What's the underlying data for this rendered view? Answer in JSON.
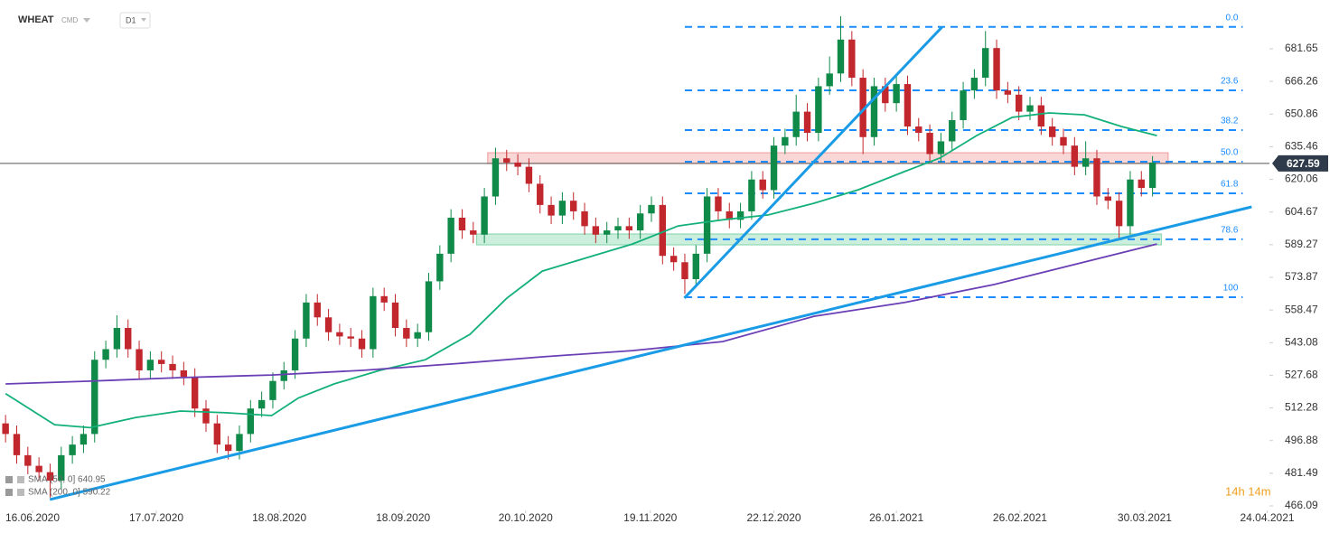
{
  "header": {
    "symbol": "WHEAT",
    "market": "CMD",
    "timeframe": "D1"
  },
  "chart_data": {
    "type": "candlestick",
    "xlim": [
      -0.5,
      113.5
    ],
    "xticks": [
      {
        "value": 2.42,
        "label": "16.06.2020"
      },
      {
        "value": 13.54,
        "label": "17.07.2020"
      },
      {
        "value": 24.58,
        "label": "18.08.2020"
      },
      {
        "value": 35.7,
        "label": "18.09.2020"
      },
      {
        "value": 46.7,
        "label": "20.10.2020"
      },
      {
        "value": 57.9,
        "label": "19.11.2020"
      },
      {
        "value": 69.0,
        "label": "22.12.2020"
      },
      {
        "value": 80.0,
        "label": "26.01.2021"
      },
      {
        "value": 91.1,
        "label": "26.02.2021"
      },
      {
        "value": 102.3,
        "label": "30.03.2021"
      },
      {
        "value": 113.3,
        "label": "24.04.2021"
      }
    ],
    "ylim": [
      463.96,
      704.65
    ],
    "yticks": [
      681.65,
      666.26,
      650.86,
      635.46,
      620.06,
      604.67,
      589.27,
      573.87,
      558.47,
      543.08,
      527.68,
      512.28,
      496.88,
      481.49,
      466.09
    ],
    "grid": false,
    "up_color": "#0f8a48",
    "down_color": "#c1272d",
    "open": [
      505,
      500,
      490,
      485,
      482,
      478,
      490,
      495,
      500,
      535,
      540,
      550,
      540,
      530,
      535,
      533,
      530,
      527,
      512,
      505,
      495,
      492,
      500,
      512,
      516,
      525,
      530,
      545,
      562,
      555,
      548,
      546,
      545,
      540,
      565,
      562,
      550,
      545,
      548,
      572,
      585,
      602,
      596,
      594,
      612,
      630,
      628,
      626,
      618,
      608,
      603,
      610,
      605,
      598,
      594,
      596,
      598,
      596,
      604,
      608,
      584,
      581,
      573,
      585,
      612,
      605,
      601,
      605,
      620,
      615,
      636,
      640,
      652,
      642,
      664,
      670,
      686,
      668,
      640,
      664,
      656,
      665,
      645,
      642,
      632,
      638,
      648,
      662,
      668,
      682,
      662,
      660,
      652,
      655,
      645,
      640,
      636,
      626,
      630,
      612,
      610,
      598,
      620,
      616
    ],
    "high": [
      509,
      504,
      494,
      489,
      486,
      494,
      499,
      504,
      539,
      544,
      556,
      554,
      544,
      539,
      539,
      537,
      534,
      531,
      516,
      509,
      499,
      504,
      516,
      520,
      529,
      534,
      549,
      566,
      566,
      559,
      552,
      550,
      549,
      569,
      569,
      566,
      554,
      552,
      576,
      589,
      606,
      606,
      600,
      616,
      635,
      634,
      632,
      630,
      622,
      612,
      614,
      614,
      609,
      602,
      600,
      602,
      602,
      608,
      612,
      612,
      588,
      585,
      589,
      616,
      616,
      609,
      609,
      624,
      624,
      640,
      644,
      660,
      656,
      668,
      678,
      697,
      690,
      672,
      668,
      668,
      669,
      669,
      649,
      646,
      642,
      652,
      666,
      672,
      690,
      686,
      666,
      664,
      659,
      659,
      649,
      644,
      640,
      638,
      634,
      616,
      614,
      624,
      624,
      631
    ],
    "low": [
      496,
      486,
      481,
      478,
      470,
      474,
      486,
      491,
      496,
      531,
      536,
      536,
      526,
      526,
      529,
      526,
      523,
      508,
      501,
      491,
      488,
      488,
      496,
      508,
      512,
      521,
      526,
      541,
      551,
      544,
      542,
      541,
      536,
      536,
      558,
      546,
      541,
      541,
      544,
      568,
      581,
      592,
      590,
      590,
      608,
      624,
      622,
      614,
      604,
      599,
      599,
      601,
      594,
      590,
      590,
      592,
      592,
      592,
      600,
      580,
      577,
      566,
      569,
      581,
      601,
      597,
      597,
      601,
      611,
      611,
      632,
      636,
      638,
      638,
      660,
      666,
      664,
      632,
      636,
      652,
      652,
      641,
      638,
      628,
      628,
      634,
      644,
      658,
      664,
      658,
      656,
      648,
      648,
      641,
      636,
      632,
      622,
      622,
      608,
      606,
      592,
      594,
      612,
      612
    ],
    "close": [
      500,
      490,
      485,
      482,
      478,
      490,
      495,
      500,
      535,
      540,
      550,
      540,
      530,
      535,
      533,
      530,
      527,
      512,
      505,
      495,
      492,
      500,
      512,
      516,
      525,
      530,
      545,
      562,
      555,
      548,
      546,
      545,
      540,
      565,
      562,
      550,
      545,
      548,
      572,
      585,
      602,
      596,
      594,
      612,
      630,
      628,
      626,
      618,
      608,
      603,
      610,
      605,
      598,
      594,
      596,
      598,
      596,
      604,
      608,
      584,
      581,
      573,
      585,
      612,
      605,
      601,
      605,
      620,
      615,
      636,
      640,
      652,
      642,
      664,
      670,
      686,
      668,
      640,
      664,
      656,
      665,
      645,
      642,
      632,
      638,
      648,
      662,
      668,
      682,
      662,
      660,
      652,
      655,
      645,
      640,
      636,
      626,
      630,
      612,
      610,
      598,
      620,
      616,
      628
    ],
    "series": [
      {
        "name": "SMA (50, 0] 640.95",
        "color": "#13b07a",
        "x": [
          0,
          4.4,
          7.6,
          11.7,
          15.7,
          19.8,
          23.9,
          26.3,
          29.5,
          33.6,
          37.7,
          41.7,
          45.0,
          48.2,
          52.3,
          56.3,
          60.4,
          64.4,
          68.5,
          72.6,
          76.6,
          80.7,
          83.9,
          87.2,
          90.4,
          93.7,
          96.9,
          100.2,
          103.4
        ],
        "values": [
          519,
          504.4,
          503,
          507.8,
          510.8,
          510,
          508.7,
          517,
          523.6,
          530,
          535,
          547,
          564,
          576.8,
          583.3,
          589.6,
          598.1,
          601,
          603.3,
          608.8,
          615.2,
          623.7,
          630.1,
          640.7,
          649.3,
          651.4,
          650.5,
          645,
          640.7
        ]
      },
      {
        "name": "SMA (200, 0] 590.22",
        "color": "#6a3fb5",
        "x": [
          0,
          7.6,
          15.7,
          23.9,
          32.0,
          40.1,
          48.2,
          56.3,
          64.4,
          72.6,
          80.7,
          88.8,
          96.9,
          103.4
        ],
        "values": [
          523.6,
          524.9,
          526.6,
          527.8,
          530,
          533,
          536.4,
          539.3,
          543.6,
          555.5,
          562,
          570.5,
          581.1,
          589.6
        ]
      }
    ],
    "trendlines": [
      {
        "color": "#1a9be6",
        "x": [
          3.98,
          111.9
        ],
        "values": [
          469.1,
          607.1
        ]
      },
      {
        "color": "#1a9be6",
        "x": [
          60.96,
          84.1
        ],
        "values": [
          564.1,
          691.9
        ]
      }
    ],
    "zones": [
      {
        "color": "#f4a6a6",
        "x": [
          43.3,
          104.4
        ],
        "values": [
          627.55,
          632.6
        ]
      },
      {
        "color": "#8fd9b3",
        "x": [
          42.3,
          103.8
        ],
        "values": [
          589.2,
          594.3
        ]
      }
    ],
    "fib_levels": {
      "color": "#1a8cff",
      "x": [
        61.0,
        111.1
      ],
      "levels": [
        {
          "ratio": {
            "value": 0,
            "label": "0.0"
          },
          "price": 692.0
        },
        {
          "ratio": 23.6,
          "price": 662.05
        },
        {
          "ratio": 38.2,
          "price": 643.3
        },
        {
          "ratio": {
            "value": 50,
            "label": "50.0"
          },
          "price": 628.4
        },
        {
          "ratio": 61.8,
          "price": 613.5
        },
        {
          "ratio": 78.6,
          "price": 591.8
        },
        {
          "ratio": 100,
          "price": 564.5
        }
      ]
    },
    "last_price": 627.59,
    "countdown": "14h 14m"
  }
}
